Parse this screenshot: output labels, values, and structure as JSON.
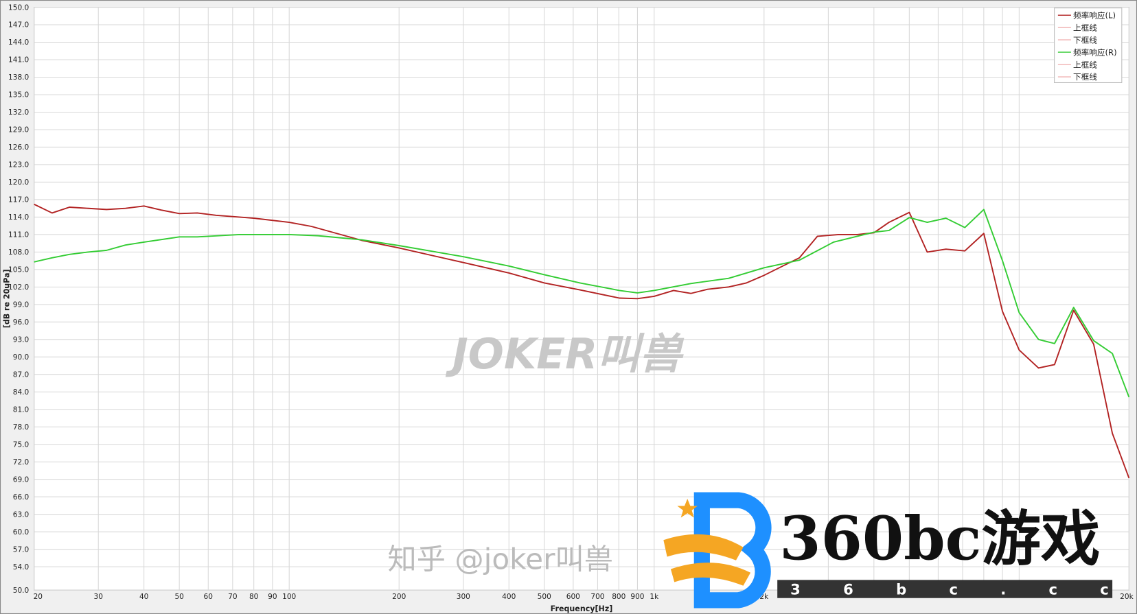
{
  "chart_data": {
    "type": "line",
    "xlabel": "Frequency[Hz]",
    "ylabel": "[dB re 20uPa]",
    "xscale": "log",
    "xlim": [
      20,
      20000
    ],
    "ylim": [
      50,
      150
    ],
    "grid": true,
    "legend_position": "top-right",
    "x_tick_labels": [
      {
        "v": 20,
        "t": "20"
      },
      {
        "v": 30,
        "t": "30"
      },
      {
        "v": 40,
        "t": "40"
      },
      {
        "v": 50,
        "t": "50"
      },
      {
        "v": 60,
        "t": "60"
      },
      {
        "v": 70,
        "t": "70"
      },
      {
        "v": 80,
        "t": "80"
      },
      {
        "v": 90,
        "t": "90"
      },
      {
        "v": 100,
        "t": "100"
      },
      {
        "v": 200,
        "t": "200"
      },
      {
        "v": 300,
        "t": "300"
      },
      {
        "v": 400,
        "t": "400"
      },
      {
        "v": 500,
        "t": "500"
      },
      {
        "v": 600,
        "t": "600"
      },
      {
        "v": 700,
        "t": "700"
      },
      {
        "v": 800,
        "t": "800"
      },
      {
        "v": 900,
        "t": "900"
      },
      {
        "v": 1000,
        "t": "1k"
      },
      {
        "v": 2000,
        "t": "2k"
      },
      {
        "v": 20000,
        "t": "20k"
      }
    ],
    "y_tick_labels": [
      "150.0",
      "147.0",
      "144.0",
      "141.0",
      "138.0",
      "135.0",
      "132.0",
      "129.0",
      "126.0",
      "123.0",
      "120.0",
      "117.0",
      "114.0",
      "111.0",
      "108.0",
      "105.0",
      "102.0",
      "99.0",
      "96.0",
      "93.0",
      "90.0",
      "87.0",
      "84.0",
      "81.0",
      "78.0",
      "75.0",
      "72.0",
      "69.0",
      "66.0",
      "63.0",
      "60.0",
      "57.0",
      "54.0",
      "50.0"
    ],
    "legend": [
      {
        "label": "频率响应(L)",
        "color": "#b22222"
      },
      {
        "label": "上框线",
        "color": "#f0b0b0"
      },
      {
        "label": "下框线",
        "color": "#f0b0b0"
      },
      {
        "label": "频率响应(R)",
        "color": "#33cc33"
      },
      {
        "label": "上框线",
        "color": "#f0b0b0"
      },
      {
        "label": "下框线",
        "color": "#f0b0b0"
      }
    ],
    "series": [
      {
        "name": "频率响应(L)",
        "color": "#b22222",
        "points": [
          [
            20,
            116.2
          ],
          [
            22.4,
            114.7
          ],
          [
            25,
            115.7
          ],
          [
            31.6,
            115.3
          ],
          [
            35.6,
            115.5
          ],
          [
            40,
            115.9
          ],
          [
            44.6,
            115.2
          ],
          [
            50,
            114.6
          ],
          [
            56,
            114.7
          ],
          [
            63,
            114.3
          ],
          [
            80,
            113.8
          ],
          [
            100,
            113.1
          ],
          [
            115,
            112.4
          ],
          [
            158,
            110.0
          ],
          [
            200,
            108.7
          ],
          [
            300,
            106.2
          ],
          [
            400,
            104.4
          ],
          [
            500,
            102.7
          ],
          [
            626,
            101.5
          ],
          [
            803,
            100.1
          ],
          [
            900,
            100.0
          ],
          [
            1000,
            100.4
          ],
          [
            1130,
            101.4
          ],
          [
            1260,
            100.9
          ],
          [
            1400,
            101.6
          ],
          [
            1600,
            102.0
          ],
          [
            1790,
            102.7
          ],
          [
            2000,
            104.0
          ],
          [
            2250,
            105.6
          ],
          [
            2500,
            107.0
          ],
          [
            2800,
            110.7
          ],
          [
            3200,
            111.0
          ],
          [
            3600,
            111.0
          ],
          [
            4000,
            111.3
          ],
          [
            4400,
            113.1
          ],
          [
            5000,
            114.8
          ],
          [
            5600,
            108.0
          ],
          [
            6300,
            108.5
          ],
          [
            7100,
            108.2
          ],
          [
            8000,
            111.2
          ],
          [
            9000,
            97.8
          ],
          [
            10000,
            91.2
          ],
          [
            11300,
            88.1
          ],
          [
            12500,
            88.7
          ],
          [
            14100,
            98.0
          ],
          [
            16000,
            92.2
          ],
          [
            18000,
            76.9
          ],
          [
            20000,
            69.2
          ]
        ]
      },
      {
        "name": "频率响应(R)",
        "color": "#33cc33",
        "points": [
          [
            20,
            106.3
          ],
          [
            22.4,
            107.0
          ],
          [
            25,
            107.6
          ],
          [
            28.1,
            108.0
          ],
          [
            31.6,
            108.3
          ],
          [
            35.6,
            109.2
          ],
          [
            40,
            109.7
          ],
          [
            50,
            110.6
          ],
          [
            56,
            110.6
          ],
          [
            73,
            111.0
          ],
          [
            100,
            111.0
          ],
          [
            120,
            110.8
          ],
          [
            158,
            110.1
          ],
          [
            200,
            109.1
          ],
          [
            300,
            107.2
          ],
          [
            400,
            105.6
          ],
          [
            500,
            104.1
          ],
          [
            626,
            102.7
          ],
          [
            803,
            101.4
          ],
          [
            900,
            101.0
          ],
          [
            1000,
            101.4
          ],
          [
            1260,
            102.6
          ],
          [
            1600,
            103.5
          ],
          [
            2000,
            105.3
          ],
          [
            2500,
            106.6
          ],
          [
            3100,
            109.7
          ],
          [
            4000,
            111.4
          ],
          [
            4400,
            111.7
          ],
          [
            5000,
            113.9
          ],
          [
            5600,
            113.1
          ],
          [
            6300,
            113.8
          ],
          [
            7100,
            112.2
          ],
          [
            8000,
            115.3
          ],
          [
            9000,
            106.5
          ],
          [
            10000,
            97.6
          ],
          [
            11300,
            93.0
          ],
          [
            12500,
            92.3
          ],
          [
            14100,
            98.5
          ],
          [
            16000,
            92.8
          ],
          [
            18000,
            90.6
          ],
          [
            20000,
            83.1
          ]
        ]
      }
    ]
  },
  "watermarks": {
    "center": "JOKER叫兽",
    "zhihu": "知乎 @joker叫兽",
    "site_name": "360bc游戏",
    "site_url": "3 6 b c . c c"
  }
}
